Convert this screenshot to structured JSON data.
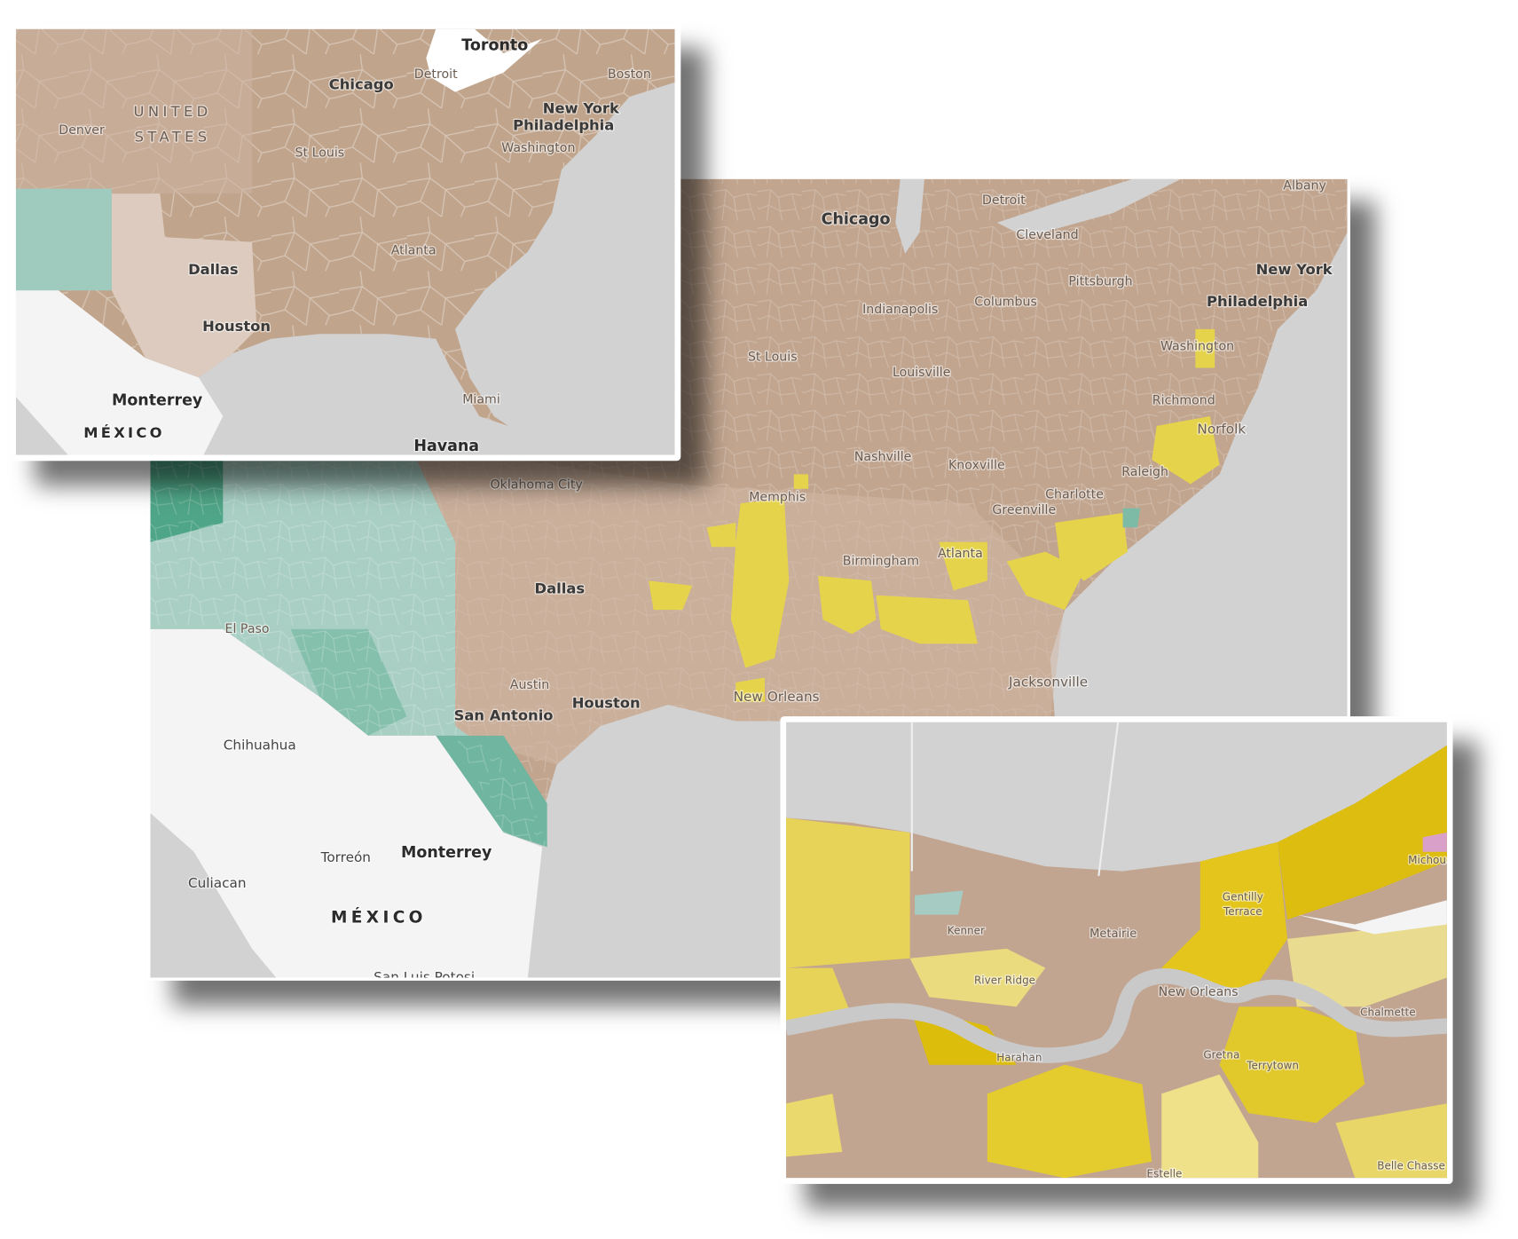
{
  "panels": [
    {
      "labels": [
        "Toronto",
        "Chicago",
        "Detroit",
        "Boston",
        "UNITED",
        "STATES",
        "Denver",
        "New York",
        "Philadelphia",
        "Washington",
        "St Louis",
        "Dallas",
        "Atlanta",
        "Houston",
        "Monterrey",
        "Miami",
        "MÉXICO",
        "Havana"
      ]
    },
    {
      "labels": [
        "Chicago",
        "Detroit",
        "Cleveland",
        "Albany",
        "New York",
        "Philadelphia",
        "Pittsburgh",
        "Columbus",
        "Indianapolis",
        "St Louis",
        "Louisville",
        "Washington",
        "Richmond",
        "Norfolk",
        "Nashville",
        "Knoxville",
        "Raleigh",
        "Oklahoma City",
        "Memphis",
        "Charlotte",
        "Greenville",
        "Atlanta",
        "Birmingham",
        "Dallas",
        "El Paso",
        "Austin",
        "Houston",
        "New Orleans",
        "Jacksonville",
        "San Antonio",
        "Chihuahua",
        "Torreón",
        "Monterrey",
        "Culiacan",
        "MÉXICO",
        "San Luis Potosi"
      ]
    },
    {
      "labels": [
        "Kenner",
        "Metairie",
        "Gentilly",
        "Terrace",
        "River Ridge",
        "New Orleans",
        "Chalmette",
        "Gretna",
        "Terrytown",
        "Harahan",
        "Estelle",
        "Belle Chasse",
        "Michoud"
      ]
    }
  ]
}
